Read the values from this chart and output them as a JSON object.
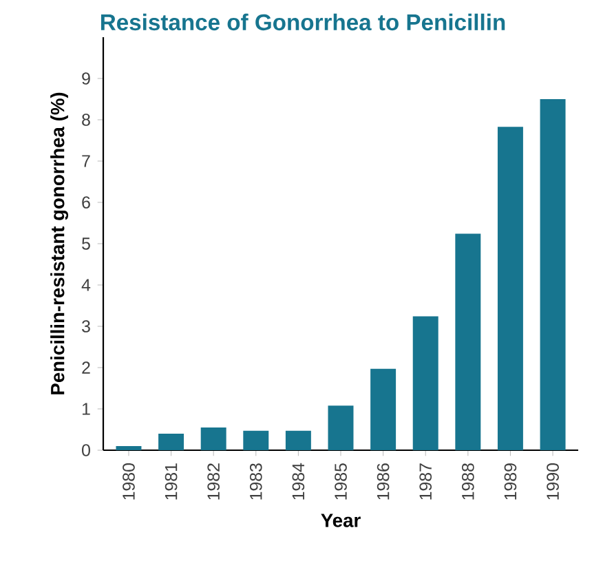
{
  "chart_data": {
    "type": "bar",
    "title": "Resistance of Gonorrhea to Penicillin",
    "xlabel": "Year",
    "ylabel": "Penicillin-resistant gonorrhea (%)",
    "categories": [
      "1980",
      "1981",
      "1982",
      "1983",
      "1984",
      "1985",
      "1986",
      "1987",
      "1988",
      "1989",
      "1990"
    ],
    "values": [
      0.1,
      0.4,
      0.55,
      0.47,
      0.47,
      1.08,
      1.97,
      3.24,
      5.24,
      7.83,
      8.5
    ],
    "color": "#17758f",
    "ylim": [
      0,
      10
    ],
    "yticks": [
      0,
      1,
      2,
      3,
      4,
      5,
      6,
      7,
      8,
      9
    ],
    "grid": false
  }
}
